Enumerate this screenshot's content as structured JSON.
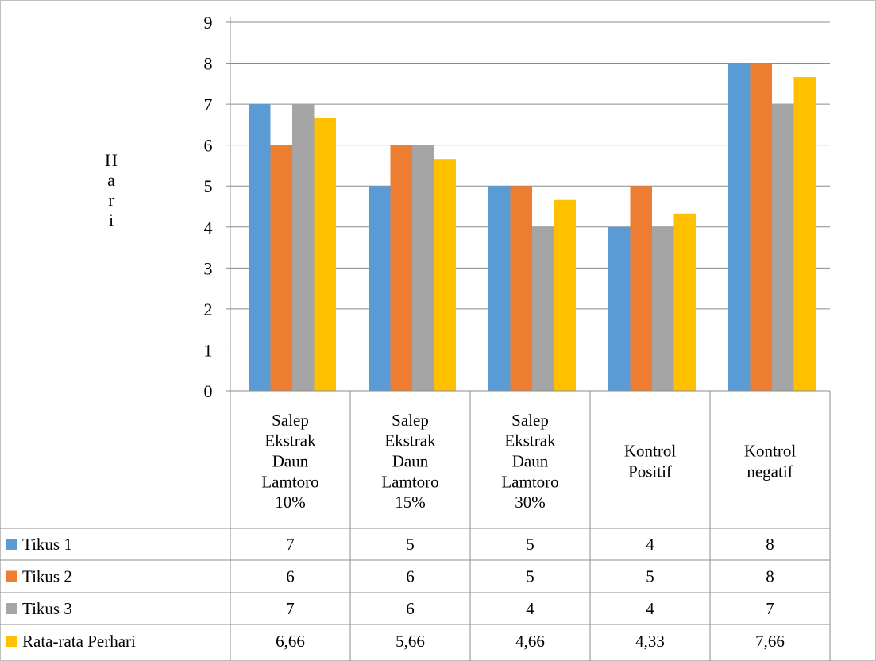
{
  "chart_data": {
    "type": "bar",
    "ylabel": "Hari",
    "ylim": [
      0,
      9
    ],
    "yticks": [
      "0",
      "1",
      "2",
      "3",
      "4",
      "5",
      "6",
      "7",
      "8",
      "9"
    ],
    "grid": true,
    "legend": "table-below",
    "categories": [
      [
        "Salep",
        "Ekstrak",
        "Daun",
        "Lamtoro",
        "10%"
      ],
      [
        "Salep",
        "Ekstrak",
        "Daun",
        "Lamtoro",
        "15%"
      ],
      [
        "Salep",
        "Ekstrak",
        "Daun",
        "Lamtoro",
        "30%"
      ],
      [
        "Kontrol",
        "Positif"
      ],
      [
        "Kontrol",
        "negatif"
      ]
    ],
    "series": [
      {
        "name": "Tikus 1",
        "color": "#5b9bd5",
        "values": [
          7,
          5,
          5,
          4,
          8
        ],
        "labels": [
          "7",
          "5",
          "5",
          "4",
          "8"
        ]
      },
      {
        "name": "Tikus 2",
        "color": "#ed7d31",
        "values": [
          6,
          6,
          5,
          5,
          8
        ],
        "labels": [
          "6",
          "6",
          "5",
          "5",
          "8"
        ]
      },
      {
        "name": "Tikus 3",
        "color": "#a5a5a5",
        "values": [
          7,
          6,
          4,
          4,
          7
        ],
        "labels": [
          "7",
          "6",
          "4",
          "4",
          "7"
        ]
      },
      {
        "name": "Rata-rata Perhari",
        "color": "#ffc000",
        "values": [
          6.66,
          5.66,
          4.66,
          4.33,
          7.66
        ],
        "labels": [
          "6,66",
          "5,66",
          "4,66",
          "4,33",
          "7,66"
        ]
      }
    ]
  }
}
